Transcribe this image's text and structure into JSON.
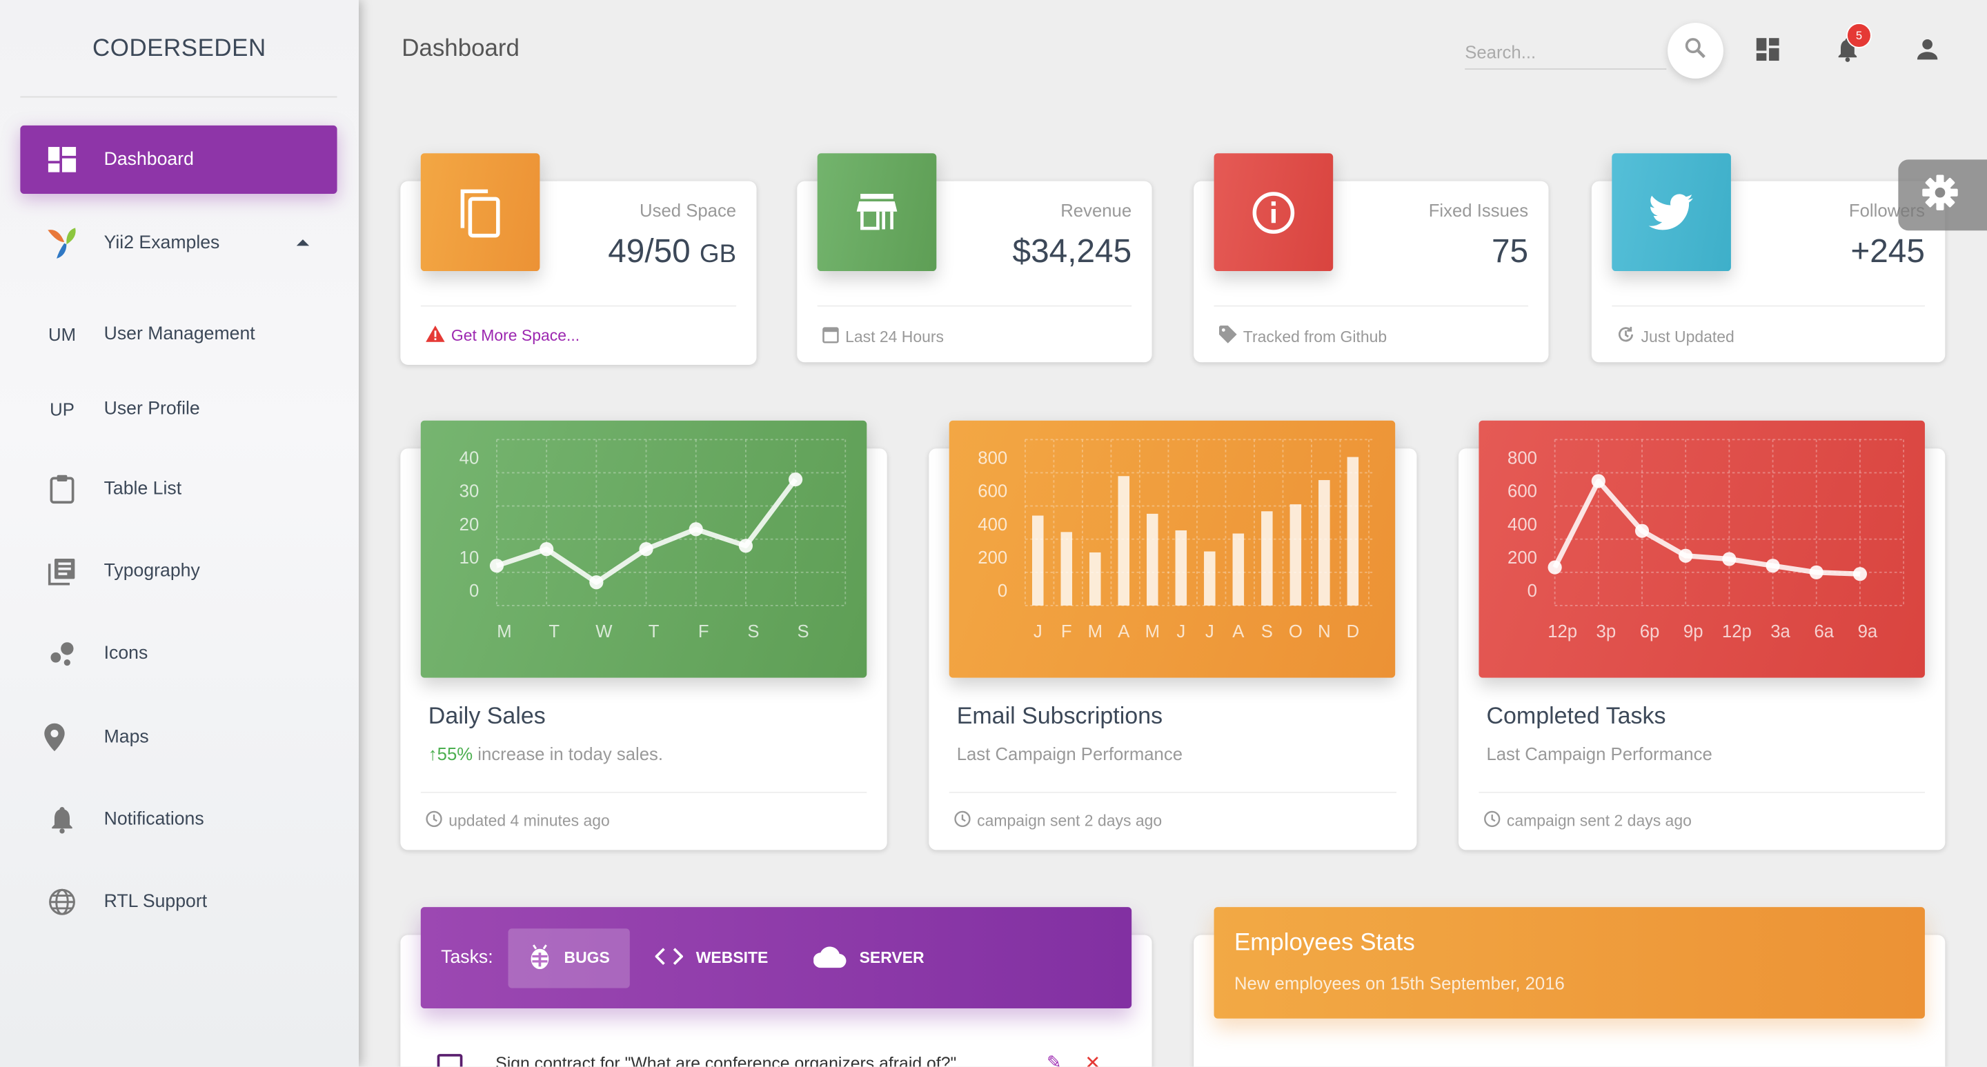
{
  "sidebar": {
    "brand": "CODERSEDEN",
    "items": [
      {
        "label": "Dashboard",
        "icon": "dashboard-icon",
        "active": true
      },
      {
        "label": "Yii2 Examples",
        "icon": "yii-logo-icon"
      },
      {
        "label": "User Management",
        "abbr": "UM"
      },
      {
        "label": "User Profile",
        "abbr": "UP"
      },
      {
        "label": "Table List",
        "icon": "clipboard-icon"
      },
      {
        "label": "Typography",
        "icon": "library-books-icon"
      },
      {
        "label": "Icons",
        "icon": "bubble-chart-icon"
      },
      {
        "label": "Maps",
        "icon": "location-pin-icon"
      },
      {
        "label": "Notifications",
        "icon": "bell-icon"
      },
      {
        "label": "RTL Support",
        "icon": "globe-icon"
      }
    ]
  },
  "header": {
    "title": "Dashboard",
    "search_placeholder": "Search...",
    "notification_count": "5"
  },
  "stats": [
    {
      "category": "Used Space",
      "value": "49/50",
      "unit": "GB",
      "footer": "Get More Space...",
      "color": "#f0a040",
      "icon": "copy-icon",
      "footer_icon": "warning-icon"
    },
    {
      "category": "Revenue",
      "value": "$34,245",
      "footer": "Last 24 Hours",
      "color": "#6aaf64",
      "icon": "store-icon",
      "footer_icon": "calendar-icon"
    },
    {
      "category": "Fixed Issues",
      "value": "75",
      "footer": "Tracked from Github",
      "color": "#e0504b",
      "icon": "info-icon",
      "footer_icon": "tag-icon"
    },
    {
      "category": "Followers",
      "value": "+245",
      "footer": "Just Updated",
      "color": "#4bb9d2",
      "icon": "twitter-icon",
      "footer_icon": "update-icon"
    }
  ],
  "charts": [
    {
      "title": "Daily Sales",
      "subtitle_pct": "55%",
      "subtitle_rest": " increase in today sales.",
      "footer": "updated 4 minutes ago",
      "color": "#6aaf64"
    },
    {
      "title": "Email Subscriptions",
      "subtitle": "Last Campaign Performance",
      "footer": "campaign sent 2 days ago",
      "color": "#f0a040"
    },
    {
      "title": "Completed Tasks",
      "subtitle": "Last Campaign Performance",
      "footer": "campaign sent 2 days ago",
      "color": "#e0504b"
    }
  ],
  "chart_data": [
    {
      "type": "line",
      "categories": [
        "M",
        "T",
        "W",
        "T",
        "F",
        "S",
        "S"
      ],
      "values": [
        12,
        17,
        7,
        17,
        23,
        18,
        38
      ],
      "ylim": [
        0,
        50
      ],
      "ytick_labels": [
        "0",
        "10",
        "20",
        "30",
        "40"
      ],
      "grid": true
    },
    {
      "type": "bar",
      "categories": [
        "J",
        "F",
        "M",
        "A",
        "M",
        "J",
        "J",
        "A",
        "S",
        "O",
        "N",
        "D"
      ],
      "values": [
        542,
        443,
        320,
        780,
        553,
        453,
        326,
        434,
        568,
        610,
        756,
        895
      ],
      "ylim": [
        0,
        1000
      ],
      "ytick_labels": [
        "0",
        "200",
        "400",
        "600",
        "800"
      ],
      "grid": true
    },
    {
      "type": "line",
      "categories": [
        "12p",
        "3p",
        "6p",
        "9p",
        "12p",
        "3a",
        "6a",
        "9a"
      ],
      "values": [
        230,
        750,
        450,
        300,
        280,
        240,
        200,
        190
      ],
      "ylim": [
        0,
        1000
      ],
      "ytick_labels": [
        "0",
        "200",
        "400",
        "600",
        "800"
      ],
      "grid": true
    }
  ],
  "tasks": {
    "label": "Tasks:",
    "tabs": [
      {
        "label": "BUGS",
        "icon": "bug-icon",
        "active": true
      },
      {
        "label": "WEBSITE",
        "icon": "code-icon"
      },
      {
        "label": "SERVER",
        "icon": "cloud-icon"
      }
    ],
    "rows": [
      {
        "text": "Sign contract for \"What are conference organizers afraid of?\"",
        "checked": true
      }
    ]
  },
  "employees": {
    "title": "Employees Stats",
    "subtitle": "New employees on 15th September, 2016"
  }
}
